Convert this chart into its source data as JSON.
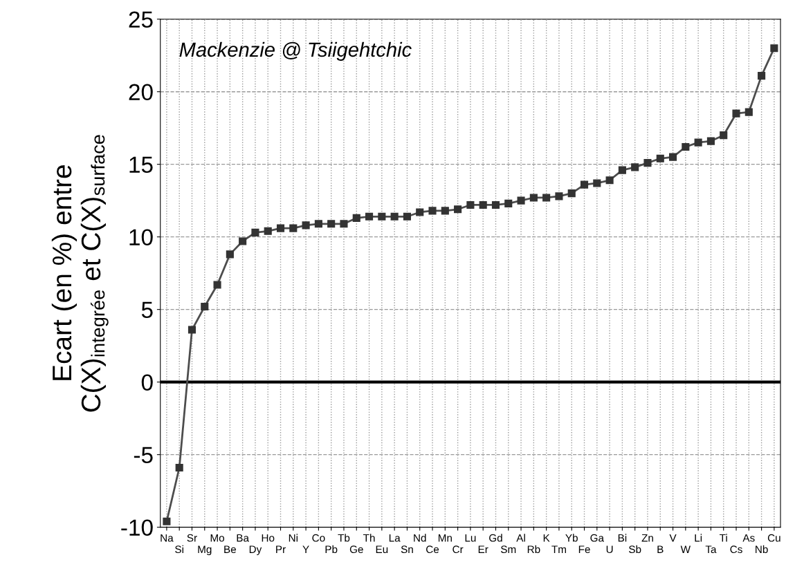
{
  "chart_data": {
    "type": "line",
    "categories": [
      "Na",
      "Si",
      "Sr",
      "Mg",
      "Mo",
      "Be",
      "Ba",
      "Dy",
      "Ho",
      "Pr",
      "Ni",
      "Y",
      "Co",
      "Pb",
      "Tb",
      "Ge",
      "Th",
      "Eu",
      "La",
      "Sn",
      "Nd",
      "Ce",
      "Mn",
      "Cr",
      "Lu",
      "Er",
      "Gd",
      "Sm",
      "Al",
      "Rb",
      "K",
      "Tm",
      "Yb",
      "Fe",
      "Ga",
      "U",
      "Bi",
      "Sb",
      "Zn",
      "B",
      "V",
      "W",
      "Li",
      "Ta",
      "Ti",
      "Cs",
      "As",
      "Nb",
      "Cu"
    ],
    "series": [
      {
        "color": "#4d4d4d",
        "values": [
          -9.6,
          -5.9,
          3.6,
          5.2,
          6.7,
          8.8,
          9.7,
          10.3,
          10.4,
          10.6,
          10.6,
          10.8,
          10.9,
          10.9,
          10.9,
          11.3,
          11.4,
          11.4,
          11.4,
          11.4,
          11.7,
          11.8,
          11.8,
          11.9,
          12.2,
          12.2,
          12.2,
          12.3,
          12.5,
          12.7,
          12.7,
          12.8,
          13.0,
          13.6,
          13.7,
          13.9,
          14.6,
          14.8,
          15.1,
          15.4,
          15.5,
          16.2,
          16.5,
          16.6,
          17.0,
          18.5,
          18.6,
          21.1,
          23.0
        ]
      }
    ],
    "ylabel": "Ecart (en %) entre\nC(X)$_{integrée}$ et C(X)$_{surface}$",
    "annotations": [
      "Mackenzie @ Tsiigehtchic"
    ],
    "ylim": [
      -10,
      25
    ],
    "yticks": [
      -10,
      -5,
      0,
      5,
      10,
      15,
      20,
      25
    ],
    "ref_lines": [
      {
        "axis": "y",
        "value": 0,
        "color": "#000000"
      }
    ],
    "grid": true,
    "marker": "square",
    "line_style": "solid"
  }
}
